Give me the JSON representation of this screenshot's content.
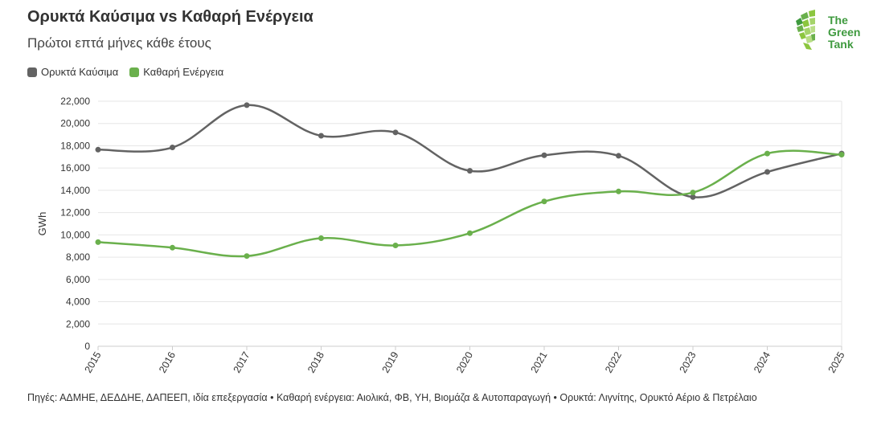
{
  "header": {
    "title": "Ορυκτά Καύσιμα vs Καθαρή Ενέργεια",
    "subtitle": "Πρώτοι επτά μήνες κάθε έτους"
  },
  "logo": {
    "line1": "The",
    "line2": "Green",
    "line3": "Tank",
    "color": "#3f9a3f"
  },
  "footer": {
    "source": "Πηγές: ΑΔΜΗΕ, ΔΕΔΔΗΕ, ΔΑΠΕΕΠ, ιδία επεξεργασία • Καθαρή ενέργεια: Αιολικά, ΦΒ, ΥΗ, Βιομάζα & Αυτοπαραγωγή • Ορυκτά: Λιγνίτης, Ορυκτό Αέριο & Πετρέλαιο"
  },
  "chart_data": {
    "type": "line",
    "title": "Ορυκτά Καύσιμα vs Καθαρή Ενέργεια",
    "subtitle": "Πρώτοι επτά μήνες κάθε έτους",
    "xlabel": "",
    "ylabel": "GWh",
    "x": [
      "2015",
      "2016",
      "2017",
      "2018",
      "2019",
      "2020",
      "2021",
      "2022",
      "2023",
      "2024",
      "2025"
    ],
    "ylim": [
      0,
      22000
    ],
    "yticks": [
      0,
      2000,
      4000,
      6000,
      8000,
      10000,
      12000,
      14000,
      16000,
      18000,
      20000,
      22000
    ],
    "ytick_labels": [
      "0",
      "2,000",
      "4,000",
      "6,000",
      "8,000",
      "10,000",
      "12,000",
      "14,000",
      "16,000",
      "18,000",
      "20,000",
      "22,000"
    ],
    "grid": true,
    "legend_position": "top-left",
    "series": [
      {
        "name": "Ορυκτά Καύσιμα",
        "color": "#636363",
        "values": [
          17650,
          17850,
          21650,
          18900,
          19200,
          15750,
          17150,
          17100,
          13400,
          15650,
          17300
        ]
      },
      {
        "name": "Καθαρή Ενέργεια",
        "color": "#6ab04c",
        "values": [
          9350,
          8850,
          8100,
          9700,
          9050,
          10150,
          13000,
          13900,
          13800,
          17300,
          17200
        ]
      }
    ]
  }
}
